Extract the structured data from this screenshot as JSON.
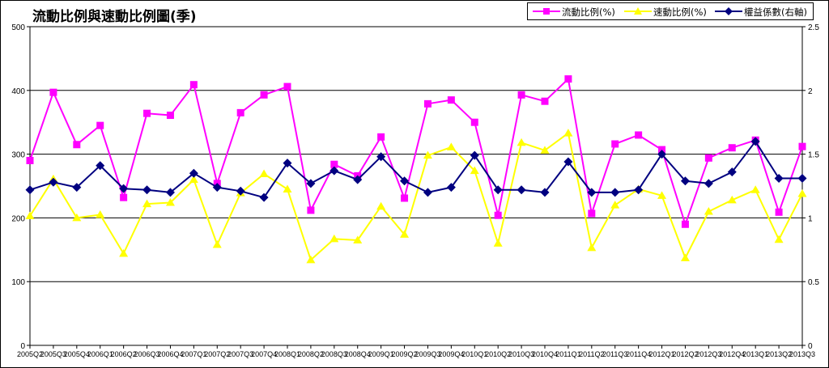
{
  "chart_data": {
    "type": "line",
    "title": "流動比例與速動比例圖(季)",
    "categories": [
      "2005Q2",
      "2005Q3",
      "2005Q4",
      "2006Q1",
      "2006Q2",
      "2006Q3",
      "2006Q4",
      "2007Q1",
      "2007Q2",
      "2007Q3",
      "2007Q4",
      "2008Q1",
      "2008Q2",
      "2008Q3",
      "2008Q4",
      "2009Q1",
      "2009Q2",
      "2009Q3",
      "2009Q4",
      "2010Q1",
      "2010Q2",
      "2010Q3",
      "2010Q4",
      "2011Q1",
      "2011Q2",
      "2011Q3",
      "2011Q4",
      "2012Q1",
      "2012Q2",
      "2012Q3",
      "2012Q4",
      "2013Q1",
      "2013Q2",
      "2013Q3"
    ],
    "y_left": {
      "ticks": [
        "0",
        "100",
        "200",
        "300",
        "400",
        "500"
      ],
      "min": 0,
      "max": 500
    },
    "y_right": {
      "ticks": [
        "0",
        "0.5",
        "1",
        "1.5",
        "2",
        "2.5"
      ],
      "min": 0,
      "max": 2.5
    },
    "grid": true,
    "legend_position": "top-right",
    "series": [
      {
        "name": "流動比例(%)",
        "axis": "left",
        "color": "#ff00ff",
        "marker": "square",
        "values": [
          290,
          397,
          315,
          345,
          232,
          364,
          361,
          409,
          254,
          365,
          393,
          406,
          212,
          284,
          266,
          327,
          231,
          379,
          385,
          350,
          204,
          393,
          383,
          418,
          207,
          316,
          330,
          307,
          190,
          294,
          310,
          322,
          209,
          312
        ]
      },
      {
        "name": "速動比例(%)",
        "axis": "left",
        "color": "#ffff00",
        "marker": "triangle",
        "values": [
          203,
          261,
          200,
          205,
          144,
          222,
          224,
          260,
          158,
          239,
          269,
          245,
          134,
          167,
          165,
          218,
          174,
          298,
          311,
          274,
          160,
          318,
          306,
          333,
          153,
          220,
          245,
          235,
          137,
          210,
          228,
          244,
          166,
          238
        ]
      },
      {
        "name": "權益係數(右軸)",
        "axis": "right",
        "color": "#000080",
        "marker": "diamond",
        "values": [
          1.22,
          1.28,
          1.24,
          1.41,
          1.23,
          1.22,
          1.2,
          1.35,
          1.24,
          1.21,
          1.16,
          1.43,
          1.27,
          1.37,
          1.3,
          1.48,
          1.29,
          1.2,
          1.24,
          1.49,
          1.22,
          1.22,
          1.2,
          1.44,
          1.2,
          1.2,
          1.22,
          1.5,
          1.29,
          1.27,
          1.36,
          1.6,
          1.31,
          1.31
        ]
      }
    ]
  }
}
